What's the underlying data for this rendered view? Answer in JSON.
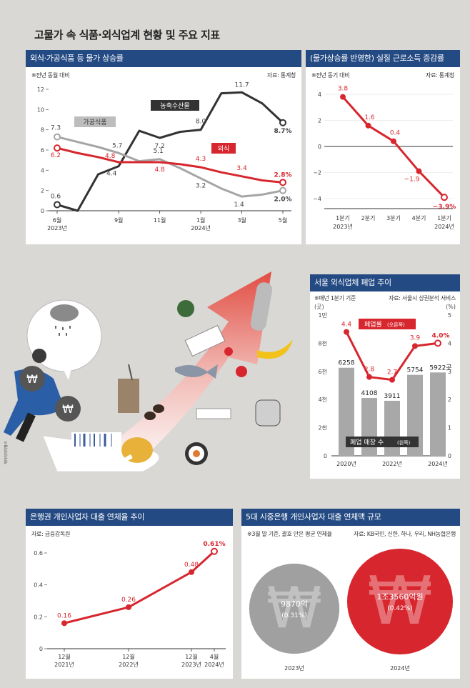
{
  "page_title": "고물가 속 식품·외식업계 현황 및 주요 지표",
  "colors": {
    "header": "#244a83",
    "red": "#d7262e",
    "dark": "#333333",
    "gray": "#a5a5a5",
    "bar": "#a8a8a8",
    "bg": "#d9d8d5"
  },
  "charts": {
    "c1": {
      "title": "외식·가공식품 등 물가 상승률",
      "note": "※전년 동월 대비",
      "source": "자료: 통계청",
      "tag_dark": "농축수산물",
      "tag_gray": "가공식품",
      "tag_red": "외식",
      "y_ticks": [
        "0",
        "2",
        "4",
        "6",
        "8",
        "10",
        "12"
      ],
      "x_labels": [
        {
          "top": "6월",
          "bottom": "2023년"
        },
        {
          "top": "9월",
          "bottom": ""
        },
        {
          "top": "11월",
          "bottom": ""
        },
        {
          "top": "1월",
          "bottom": "2024년"
        },
        {
          "top": "3월",
          "bottom": ""
        },
        {
          "top": "5월",
          "bottom": ""
        }
      ]
    },
    "c2": {
      "title": "(물가상승률 반영한) 실질 근로소득 증감률",
      "note": "※전년 동기 대비",
      "source": "자료: 통계청",
      "y_ticks": [
        "−4",
        "−2",
        "0",
        "2",
        "4"
      ],
      "x_labels": [
        {
          "top": "1분기",
          "bottom": "2023년"
        },
        {
          "top": "2분기",
          "bottom": ""
        },
        {
          "top": "3분기",
          "bottom": ""
        },
        {
          "top": "4분기",
          "bottom": ""
        },
        {
          "top": "1분기",
          "bottom": "2024년"
        }
      ]
    },
    "c3": {
      "title": "서울 외식업체 폐업 추이",
      "note": "※매년 1분기 기준",
      "source": "자료: 서울시 상권분석 서비스",
      "left_unit": "(곳)",
      "right_unit": "(%)",
      "left_ticks": [
        "0",
        "2천",
        "4천",
        "6천",
        "8천",
        "1만"
      ],
      "right_ticks": [
        "0",
        "1",
        "2",
        "3",
        "4",
        "5"
      ],
      "tag_rate": "폐업률",
      "tag_rate_axis": "(오른쪽)",
      "tag_count": "폐업 매장 수",
      "tag_count_axis": "(왼쪽)",
      "x_labels": [
        "2020년",
        "2022년",
        "2024년"
      ]
    },
    "c4": {
      "title": "은행권 개인사업자 대출 연체율 추이",
      "source": "자료: 금융감독원",
      "y_ticks": [
        "0",
        "0.2",
        "0.4",
        "0.6"
      ],
      "x_labels": [
        {
          "top": "12월",
          "bottom": "2021년"
        },
        {
          "top": "12월",
          "bottom": "2022년"
        },
        {
          "top": "12월",
          "bottom": "2023년"
        },
        {
          "top": "4월",
          "bottom": "2024년"
        }
      ]
    },
    "c5": {
      "title": "5대 시중은행 개인사업자 대출 연체액 규모",
      "note": "※3월 말 기준, 괄호 안은 평균 연체율",
      "source": "자료: KB국민, 신한, 하나, 우리, NH농협은행",
      "currency_symbol": "₩",
      "bubbles": [
        {
          "year": "2023년",
          "amount": "9870억",
          "rate": "(0.31%)",
          "value": 9870,
          "color": "#a0a0a0"
        },
        {
          "year": "2024년",
          "amount": "1조3560억원",
          "rate": "(0.42%)",
          "value": 13560,
          "color": "#d7262e"
        }
      ]
    }
  },
  "illustration": {
    "credit": "게티이미지뱅크"
  },
  "chart_data": [
    {
      "type": "line",
      "title": "외식·가공식품 등 물가 상승률",
      "x": [
        "6월",
        "7월",
        "8월",
        "9월",
        "10월",
        "11월",
        "12월",
        "1월",
        "2월",
        "3월",
        "4월",
        "5월"
      ],
      "ylim": [
        0,
        12
      ],
      "grid": false,
      "series": [
        {
          "name": "농축수산물",
          "values": [
            0.6,
            0.0,
            3.6,
            4.4,
            7.9,
            7.2,
            7.8,
            8.0,
            11.6,
            11.7,
            10.6,
            8.7
          ],
          "labels": [
            "0.6",
            "",
            "",
            "4.4",
            "",
            "7.2",
            "",
            "8.0",
            "",
            "11.7",
            "",
            "8.7%"
          ]
        },
        {
          "name": "가공식품",
          "values": [
            7.3,
            6.8,
            6.3,
            5.7,
            4.9,
            5.1,
            4.2,
            3.2,
            2.2,
            1.4,
            1.6,
            2.0
          ],
          "labels": [
            "7.3",
            "",
            "",
            "5.7",
            "",
            "5.1",
            "",
            "3.2",
            "",
            "1.4",
            "",
            "2.0%"
          ]
        },
        {
          "name": "외식",
          "values": [
            6.2,
            5.7,
            5.3,
            4.8,
            4.8,
            4.8,
            4.6,
            4.3,
            3.8,
            3.4,
            3.0,
            2.8
          ],
          "labels": [
            "6.2",
            "",
            "",
            "4.8",
            "",
            "4.8",
            "",
            "4.3",
            "",
            "3.4",
            "",
            "2.8%"
          ]
        }
      ]
    },
    {
      "type": "line",
      "title": "(물가상승률 반영한) 실질 근로소득 증감률",
      "categories": [
        "1분기 2023년",
        "2분기",
        "3분기",
        "4분기",
        "1분기 2024년"
      ],
      "values": [
        3.8,
        1.6,
        0.4,
        -1.9,
        -3.9
      ],
      "labels": [
        "3.8",
        "1.6",
        "0.4",
        "−1.9",
        "−3.9%"
      ],
      "ylim": [
        -4.5,
        4.5
      ],
      "grid": true
    },
    {
      "type": "bar",
      "title": "서울 외식업체 폐업 추이",
      "categories": [
        "2020년",
        "2021년",
        "2022년",
        "2023년",
        "2024년"
      ],
      "series": [
        {
          "name": "폐업 매장 수",
          "axis": "left",
          "values": [
            6258,
            4108,
            3911,
            5754,
            5922
          ],
          "labels": [
            "6258",
            "4108",
            "3911",
            "5754",
            "5922곳"
          ]
        },
        {
          "name": "폐업률",
          "axis": "right",
          "type": "line",
          "values": [
            4.4,
            2.8,
            2.7,
            3.9,
            4.0
          ],
          "labels": [
            "4.4",
            "2.8",
            "2.7",
            "3.9",
            "4.0%"
          ]
        }
      ],
      "ylim_left": [
        0,
        10000
      ],
      "ylim_right": [
        0,
        5
      ]
    },
    {
      "type": "line",
      "title": "은행권 개인사업자 대출 연체율 추이",
      "categories": [
        "2021-12",
        "2022-12",
        "2023-12",
        "2024-04"
      ],
      "values": [
        0.16,
        0.26,
        0.48,
        0.61
      ],
      "labels": [
        "0.16",
        "0.26",
        "0.48",
        "0.61%"
      ],
      "ylim": [
        0,
        0.65
      ],
      "grid": false
    }
  ]
}
